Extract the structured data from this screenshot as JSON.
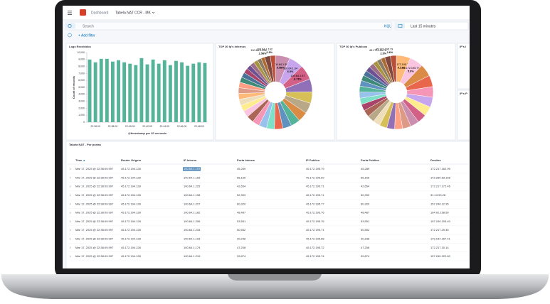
{
  "header": {
    "breadcrumb": "Dashboard",
    "dashboard": "Tabela NAT CCR - MK"
  },
  "query": {
    "placeholder": "Search",
    "language": "KQL",
    "time_range": "Last 15 minutes",
    "add_filter": "+ Add filter"
  },
  "bar_panel": {
    "title": "Logs Recebidos",
    "y_label": "Count of records",
    "x_label": "@timestamp per 30 seconds",
    "color": "#54B399",
    "ylim": [
      0,
      10000
    ],
    "yticks": [
      0,
      {
        "value": 1000,
        "label": "1,000"
      },
      {
        "value": 2000,
        "label": "2,000"
      },
      {
        "value": 3000,
        "label": "3,000"
      },
      {
        "value": 4000,
        "label": "4,000"
      },
      {
        "value": 5000,
        "label": "5,000"
      },
      {
        "value": 6000,
        "label": "6,000"
      },
      {
        "value": 7000,
        "label": "7,000"
      },
      {
        "value": 8000,
        "label": "8,000"
      },
      {
        "value": 9000,
        "label": "9,000"
      },
      {
        "value": 10000,
        "label": "10,000"
      }
    ],
    "categories": [
      null,
      "22:36:00",
      null,
      null,
      "22:38:00",
      null,
      null,
      "22:40:00",
      null,
      null,
      "22:42:00",
      null,
      null,
      "22:44:00",
      null,
      null,
      "22:46:00",
      null,
      null,
      "22:48:00",
      null
    ],
    "values": [
      9000,
      8600,
      9100,
      9100,
      8700,
      8900,
      8600,
      8400,
      8200,
      9200,
      8300,
      9000,
      8400,
      8900,
      8200,
      8800,
      8600,
      8100,
      8400,
      8600,
      8500
    ]
  },
  "pie_panels": [
    {
      "title": "TOP 30 Ip's Internos",
      "labels": [
        "100.64.1.55",
        "100.64.1.64",
        "100.64.1.57",
        null,
        null,
        null,
        null,
        null,
        null,
        null,
        null,
        null,
        null,
        null,
        null,
        null,
        null,
        null,
        null,
        null,
        null,
        null,
        null,
        null,
        null,
        null,
        null,
        null,
        "100.64.1.108",
        "100.64.1.162"
      ],
      "values": [
        6.58,
        6.5,
        6.71,
        5.9,
        5.2,
        4.8,
        4.5,
        4.2,
        4.0,
        3.8,
        3.6,
        3.5,
        3.3,
        3.2,
        3.0,
        2.9,
        2.8,
        2.7,
        2.6,
        2.5,
        2.4,
        2.3,
        2.2,
        2.1,
        2.0,
        1.9,
        1.8,
        1.7,
        2.58,
        2.3
      ],
      "value_labels": [
        "6.58%",
        "6.5%",
        "6.71%",
        null,
        null,
        null,
        null,
        null,
        null,
        null,
        null,
        null,
        null,
        null,
        null,
        null,
        null,
        null,
        null,
        null,
        null,
        null,
        null,
        null,
        null,
        null,
        null,
        null,
        "2.58%",
        "2.3%"
      ],
      "colors": [
        "#CA8EAE",
        "#C7A6EE",
        "#D36086",
        "#9170B8",
        "#D6BF57",
        "#B9A888",
        "#DA8B45",
        "#54B399",
        "#6092C0",
        "#E7664C",
        "#7DE0C7",
        "#98C2EC",
        "#F596B6",
        "#AA6556",
        "#FAC5E0",
        "#FFEC8F",
        "#EFDEBA",
        "#FFBA7A",
        "#DD9A86",
        "#FF9F84",
        "#3F8A78",
        "#4A7299",
        "#A84469",
        "#6E5191",
        "#9E6D88",
        "#A8943E",
        "#8A7C65",
        "#AD6B33",
        "#81483E",
        "#B84F39"
      ]
    },
    {
      "title": "TOP 30 Ip's Publicos",
      "labels": [
        "45.172.195.75",
        "45.172.195.77",
        null,
        null,
        null,
        null,
        null,
        null,
        null,
        null,
        null,
        null,
        null,
        null,
        null,
        null,
        null,
        null,
        null,
        null,
        null,
        null,
        null,
        null,
        null,
        null,
        null,
        null,
        "45.172.195.70",
        "45.172.195.79"
      ],
      "values": [
        6.21,
        5.9,
        5.4,
        5.0,
        4.7,
        4.4,
        4.2,
        4.0,
        3.8,
        3.7,
        3.5,
        3.4,
        3.3,
        3.2,
        3.1,
        3.0,
        2.9,
        2.8,
        2.7,
        2.6,
        2.5,
        2.4,
        2.3,
        2.2,
        2.1,
        2.0,
        1.9,
        1.8,
        2.5,
        2.6
      ],
      "value_labels": [
        "6.21%",
        "5.9%",
        null,
        null,
        null,
        null,
        null,
        null,
        null,
        null,
        null,
        null,
        null,
        null,
        null,
        null,
        null,
        null,
        null,
        null,
        null,
        null,
        null,
        null,
        null,
        null,
        null,
        null,
        "2.5%",
        "2.6%"
      ],
      "colors": [
        "#FFBA7A",
        "#FAC5E0",
        "#DA8B45",
        "#E7664C",
        "#F596B6",
        "#C7A6EE",
        "#FFEC8F",
        "#D36086",
        "#CA8EAE",
        "#DD9A86",
        "#FF9F84",
        "#9170B8",
        "#D6BF57",
        "#EFDEBA",
        "#B9A888",
        "#AA6556",
        "#A84469",
        "#7DE0C7",
        "#98C2EC",
        "#54B399",
        "#6092C0",
        "#3F8A78",
        "#4A7299",
        "#6E5191",
        "#9E6D88",
        "#A8943E",
        "#8A7C65",
        "#AD6B33",
        "#81483E",
        "#B84F39"
      ]
    }
  ],
  "side_panels": [
    "IP's I",
    "IP's P"
  ],
  "table": {
    "title": "Tabela NAT - Por portas",
    "columns": [
      "Time",
      "Router Origem",
      "IP Interno",
      "Porta Interna",
      "IP Publico",
      "Porta Publica",
      "Destino"
    ],
    "rows": [
      [
        "Mar 17, 2025 @ 22:38:09.997",
        "45.172.194.128",
        "100.64.1.197",
        "45,289",
        "45.172.195.79",
        "45,289",
        "172.217.162.99"
      ],
      [
        "Mar 17, 2025 @ 22:38:09.997",
        "45.172.194.128",
        "100.64.1.183",
        "56,165",
        "45.172.195.69",
        "56,165",
        "142.250.83.168"
      ],
      [
        "Mar 17, 2025 @ 22:38:09.997",
        "45.172.194.128",
        "100.64.1.225",
        "42,654",
        "45.172.195.71",
        "42,654",
        "172.217.172.46"
      ],
      [
        "Mar 17, 2025 @ 22:38:09.997",
        "45.172.194.128",
        "100.64.1.198",
        "52,393",
        "45.172.195.71",
        "52,393",
        "31.13.90.28"
      ],
      [
        "Mar 17, 2025 @ 22:38:09.997",
        "45.172.194.128",
        "100.64.1.227",
        "60,320",
        "45.172.195.77",
        "60,320",
        "157.240.12.35"
      ],
      [
        "Mar 17, 2025 @ 22:38:09.997",
        "45.172.194.128",
        "100.64.1.182",
        "48,487",
        "45.172.195.76",
        "48,487",
        "164.92.158.56"
      ],
      [
        "Mar 17, 2025 @ 22:38:09.997",
        "45.172.194.128",
        "100.64.1.206",
        "53,551",
        "45.172.195.76",
        "53,551",
        "157.240.203.40"
      ],
      [
        "Mar 17, 2025 @ 22:38:09.997",
        "45.172.194.128",
        "100.64.1.234",
        "50,552",
        "45.172.195.71",
        "50,552",
        "172.217.29.46"
      ],
      [
        "Mar 17, 2025 @ 22:38:09.997",
        "45.172.194.128",
        "100.64.1.193",
        "30,238",
        "45.172.195.68",
        "30,238",
        "149.154.167.41"
      ],
      [
        "Mar 17, 2025 @ 22:38:09.997",
        "45.172.194.128",
        "100.64.1.174",
        "47,208",
        "45.172.195.72",
        "47,208",
        "172.217.30.14"
      ],
      [
        "Mar 17, 2025 @ 22:38:09.997",
        "45.172.194.128",
        "100.64.1.219",
        "39,874",
        "45.172.195.74",
        "39,874",
        "157.240.222.60"
      ]
    ]
  }
}
